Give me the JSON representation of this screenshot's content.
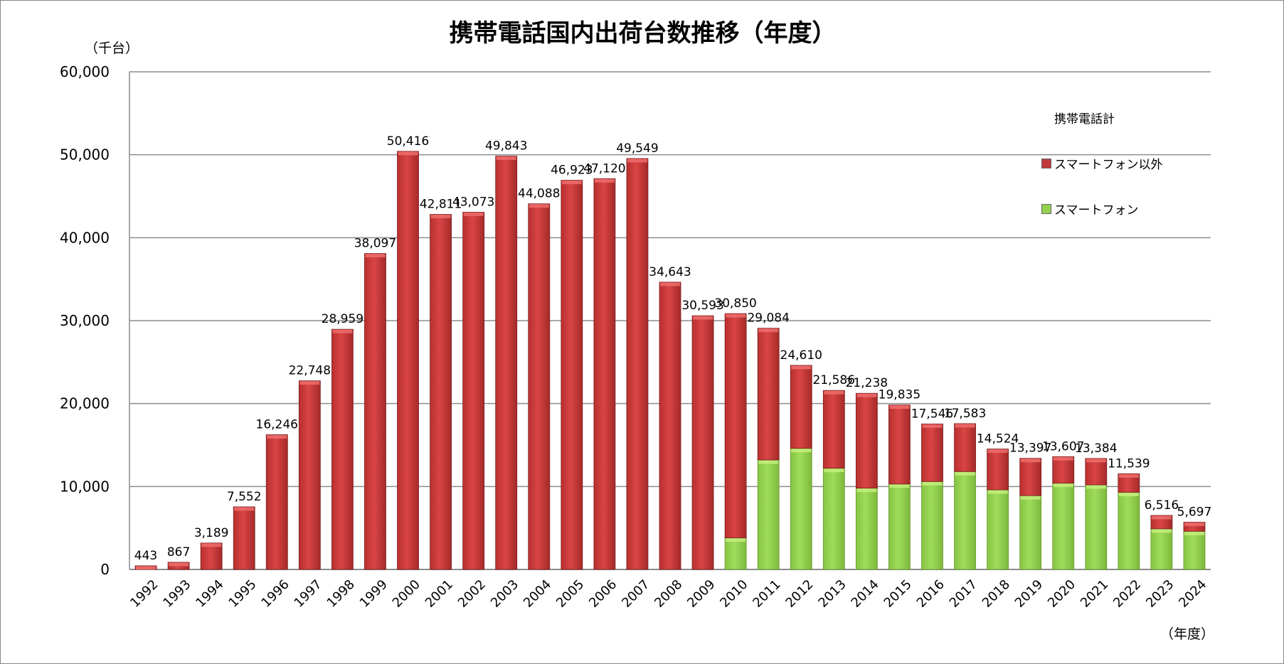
{
  "chart_data": {
    "type": "bar",
    "stacked": true,
    "title": "携帯電話国内出荷台数推移（年度）",
    "ylabel": "（千台）",
    "xlabel": "（年度）",
    "ylim": [
      0,
      60000
    ],
    "yticks": [
      "0",
      "10,000",
      "20,000",
      "30,000",
      "40,000",
      "50,000",
      "60,000"
    ],
    "grid": true,
    "legend_position": "top-right",
    "legend_title": "携帯電話計",
    "categories": [
      "1992",
      "1993",
      "1994",
      "1995",
      "1996",
      "1997",
      "1998",
      "1999",
      "2000",
      "2001",
      "2002",
      "2003",
      "2004",
      "2005",
      "2006",
      "2007",
      "2008",
      "2009",
      "2010",
      "2011",
      "2012",
      "2013",
      "2014",
      "2015",
      "2016",
      "2017",
      "2018",
      "2019",
      "2020",
      "2021",
      "2022",
      "2023",
      "2024"
    ],
    "totals": [
      443,
      867,
      3189,
      7552,
      16246,
      22748,
      28959,
      38097,
      50416,
      42811,
      43073,
      49843,
      44088,
      46923,
      47120,
      49549,
      34643,
      30593,
      30850,
      29084,
      24610,
      21586,
      21238,
      19835,
      17546,
      17583,
      14524,
      13397,
      13607,
      13384,
      11539,
      6516,
      5697
    ],
    "total_labels": [
      "443",
      "867",
      "3,189",
      "7,552",
      "16,246",
      "22,748",
      "28,959",
      "38,097",
      "50,416",
      "42,811",
      "43,073",
      "49,843",
      "44,088",
      "46,923",
      "47,120",
      "49,549",
      "34,643",
      "30,593",
      "30,850",
      "29,084",
      "24,610",
      "21,586",
      "21,238",
      "19,835",
      "17,546",
      "17,583",
      "14,524",
      "13,397",
      "13,607",
      "13,384",
      "11,539",
      "6,516",
      "5,697"
    ],
    "series": [
      {
        "name": "スマートフォン",
        "color": "#92d050",
        "values": [
          0,
          0,
          0,
          0,
          0,
          0,
          0,
          0,
          0,
          0,
          0,
          0,
          0,
          0,
          0,
          0,
          0,
          0,
          3800,
          13200,
          14600,
          12200,
          9800,
          10300,
          10600,
          11800,
          9600,
          8900,
          10400,
          10200,
          9300,
          4900,
          4600
        ]
      },
      {
        "name": "スマートフォン以外",
        "color": "#c0393b",
        "values": [
          443,
          867,
          3189,
          7552,
          16246,
          22748,
          28959,
          38097,
          50416,
          42811,
          43073,
          49843,
          44088,
          46923,
          47120,
          49549,
          34643,
          30593,
          27050,
          15884,
          10010,
          9386,
          11438,
          9535,
          6946,
          5783,
          4924,
          4497,
          3207,
          3184,
          2239,
          1616,
          1097
        ]
      }
    ]
  }
}
